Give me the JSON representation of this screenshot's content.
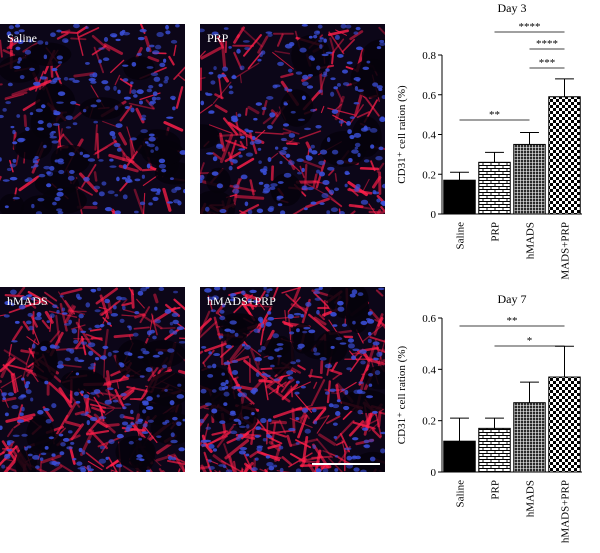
{
  "images": [
    {
      "id": "p-saline",
      "label": "Saline",
      "intensity": 0.25
    },
    {
      "id": "p-prp",
      "label": "PRP",
      "intensity": 0.45
    },
    {
      "id": "p-hmads",
      "label": "hMADS",
      "intensity": 0.8
    },
    {
      "id": "p-hmadsprp",
      "label": "hMADS+PRP",
      "intensity": 0.95
    }
  ],
  "colors": {
    "nuclei": "#3a4fd8",
    "cd31": "#ff1f4a",
    "background": "#0c0618"
  },
  "chart_data": [
    {
      "type": "bar",
      "title": "Day 3",
      "ylabel": "CD31⁺ cell ration (%)",
      "categories": [
        "Saline",
        "PRP",
        "hMADS",
        "hMADS+PRP"
      ],
      "values": [
        0.17,
        0.26,
        0.35,
        0.59
      ],
      "errors": [
        0.04,
        0.05,
        0.06,
        0.09
      ],
      "ylim": [
        0,
        0.8
      ],
      "yticks": [
        "0",
        "0.2",
        "0.4",
        "0.6",
        "0.8"
      ],
      "patterns": [
        "solid",
        "brick",
        "grid",
        "check"
      ],
      "significance": [
        {
          "from": 1,
          "to": 3,
          "label": "****"
        },
        {
          "from": 2,
          "to": 3,
          "label": "****"
        },
        {
          "from": 3,
          "to": 3,
          "label": "***",
          "left": 2.5
        },
        {
          "from": 0,
          "to": 2,
          "label": "**"
        }
      ]
    },
    {
      "type": "bar",
      "title": "Day 7",
      "ylabel": "CD31⁺ cell ration (%)",
      "categories": [
        "Saline",
        "PRP",
        "hMADS",
        "hMADS+PRP"
      ],
      "values": [
        0.12,
        0.17,
        0.27,
        0.37
      ],
      "errors": [
        0.09,
        0.04,
        0.08,
        0.12
      ],
      "ylim": [
        0,
        0.6
      ],
      "yticks": [
        "0",
        "0.2",
        "0.4",
        "0.6"
      ],
      "patterns": [
        "solid",
        "brick",
        "grid",
        "check"
      ],
      "significance": [
        {
          "from": 0,
          "to": 3,
          "label": "**"
        },
        {
          "from": 1,
          "to": 3,
          "label": "*"
        }
      ]
    }
  ]
}
